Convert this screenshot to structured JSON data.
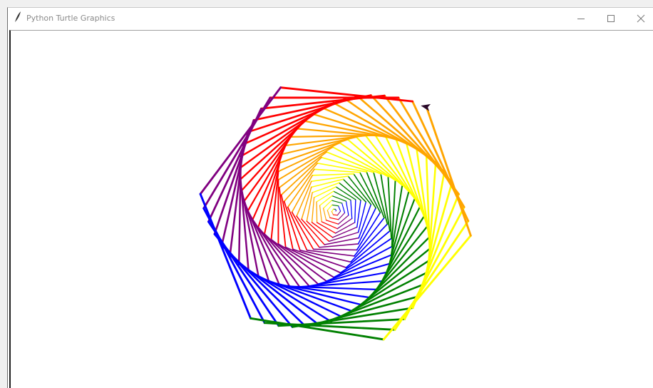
{
  "window": {
    "title": "Python Turtle Graphics"
  }
}
